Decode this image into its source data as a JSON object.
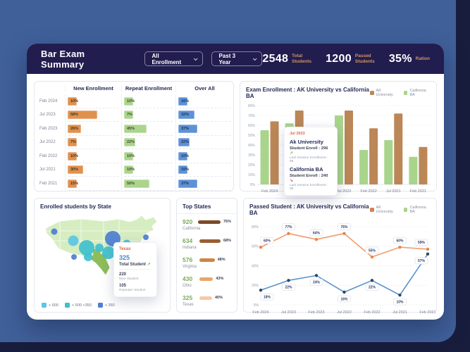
{
  "header": {
    "title": "Bar Exam Summary",
    "filters": [
      {
        "label": "All Enrollment"
      },
      {
        "label": "Past 3 Year"
      }
    ],
    "stats": [
      {
        "value": "2548",
        "label": "Total Students"
      },
      {
        "value": "1200",
        "label": "Passed Students"
      },
      {
        "value": "35%",
        "label": "Ration"
      }
    ]
  },
  "icons": {
    "trend_up": "↗",
    "trend_down": "↘"
  },
  "enrollment_table": {
    "columns": [
      "New Enrollment",
      "Repeat Enrollment",
      "Over All"
    ],
    "rows": [
      "Feb 2024",
      "Jul 2023",
      "Feb 2023",
      "Jul 2022",
      "Feb 2022",
      "Jul 2021",
      "Feb 2021"
    ],
    "new_enrollment": [
      10,
      58,
      26,
      7,
      10,
      30,
      15
    ],
    "repeat_enrollment": [
      10,
      7,
      45,
      22,
      10,
      10,
      50
    ],
    "over_all": [
      16,
      32,
      37,
      22,
      10,
      15,
      37
    ]
  },
  "chart_data": [
    {
      "type": "bar",
      "title": "Exam Enrollment : AK University vs California BA",
      "categories": [
        "Feb 2024",
        "Jul 2023",
        "Feb 2023",
        "Jul 2022",
        "Feb 2022",
        "Jul 2021",
        "Feb 2021"
      ],
      "series": [
        {
          "name": "California BA",
          "color": "#a9d48c",
          "values": [
            55,
            62,
            40,
            70,
            35,
            45,
            28
          ]
        },
        {
          "name": "AK University",
          "color": "#bb8757",
          "values": [
            64,
            75,
            57,
            75,
            57,
            72,
            38
          ]
        }
      ],
      "legend": [
        {
          "label": "AK University",
          "color": "#bb8757"
        },
        {
          "label": "California BA",
          "color": "#a9d48c"
        }
      ],
      "ylim": [
        0,
        80
      ],
      "ytick_step": 10,
      "grid": "dashed",
      "tooltip": {
        "period": "Jul 2023",
        "entries": [
          {
            "name": "Ak University",
            "enroll": "Student Enroll : 296",
            "trend": "up",
            "last": "Last Session Enrollment : 98"
          },
          {
            "name": "California BA",
            "enroll": "Student Enroll : 240",
            "trend": "down",
            "last": "Last Session Enrollment : 98"
          }
        ]
      }
    },
    {
      "type": "line",
      "title": "Passed Student : AK University vs California BA",
      "categories": [
        "Feb 2024",
        "Jul 2023",
        "Feb 2023",
        "Jul 2022",
        "Feb 2022",
        "Jul 2021",
        "Feb 2021"
      ],
      "series": [
        {
          "name": "AK University",
          "color": "#f19b6d",
          "point_color": "#e8854e",
          "values": [
            59,
            73,
            67,
            73,
            49,
            59,
            57
          ],
          "labels": [
            "60%",
            "77%",
            "64%",
            "76%",
            "55%",
            "60%",
            "59%"
          ],
          "label_side": "above"
        },
        {
          "name": "California BA",
          "color": "#5c93cd",
          "point_color": "#29496e",
          "values": [
            15,
            25,
            30,
            13,
            25,
            10,
            52
          ],
          "labels": [
            "18%",
            "22%",
            "24%",
            "16%",
            "22%",
            "10%",
            "57%"
          ],
          "label_side": "below"
        }
      ],
      "legend": [
        {
          "label": "AK University",
          "color": "#d2824e"
        },
        {
          "label": "California BA",
          "color": "#a9d48c"
        }
      ],
      "ylim": [
        0,
        80
      ],
      "ytick_step": 20,
      "grid": "dashed"
    }
  ],
  "map_panel": {
    "title": "Enrolled students by State",
    "legend": [
      {
        "label": "+ 500",
        "color": "#5bc6e6"
      },
      {
        "label": "+ 500 +350",
        "color": "#3fc0cf"
      },
      {
        "label": "+ 350",
        "color": "#4d7fd3"
      }
    ],
    "tooltip": {
      "state": "Texas",
      "total": "325",
      "total_label": "Total Student",
      "rows": [
        {
          "value": "220",
          "label": "New Student"
        },
        {
          "value": "105",
          "label": "Repeater Student"
        }
      ]
    },
    "bubbles": [
      {
        "x": 20,
        "y": 27,
        "r": 4.5,
        "c": "#4d7fd3"
      },
      {
        "x": 47,
        "y": 40,
        "r": 7.5,
        "c": "#5bc6e6"
      },
      {
        "x": 66,
        "y": 50,
        "r": 11,
        "c": "#3fc0cf"
      },
      {
        "x": 84,
        "y": 50,
        "r": 6,
        "c": "#3fc0cf"
      },
      {
        "x": 48,
        "y": 63,
        "r": 4,
        "c": "#4d7fd3"
      },
      {
        "x": 68,
        "y": 63,
        "r": 6,
        "c": "#3fc0cf"
      },
      {
        "x": 103,
        "y": 37,
        "r": 11,
        "c": "#4d7fd3"
      },
      {
        "x": 123,
        "y": 44,
        "r": 5.5,
        "c": "#3fc0cf"
      },
      {
        "x": 97,
        "y": 57,
        "r": 9,
        "c": "#3fc0cf"
      },
      {
        "x": 150,
        "y": 35,
        "r": 4,
        "c": "#4d7fd3"
      }
    ]
  },
  "top_states": {
    "title": "Top States",
    "items": [
      {
        "value": "920",
        "state": "California",
        "pct": "76%",
        "color": "#7c4a28"
      },
      {
        "value": "634",
        "state": "Indiana",
        "pct": "68%",
        "color": "#9a5e33"
      },
      {
        "value": "576",
        "state": "Virginia",
        "pct": "48%",
        "color": "#cd853f"
      },
      {
        "value": "430",
        "state": "Ohio",
        "pct": "43%",
        "color": "#e8a668"
      },
      {
        "value": "325",
        "state": "Texas",
        "pct": "40%",
        "color": "#f5c9a2"
      }
    ]
  }
}
